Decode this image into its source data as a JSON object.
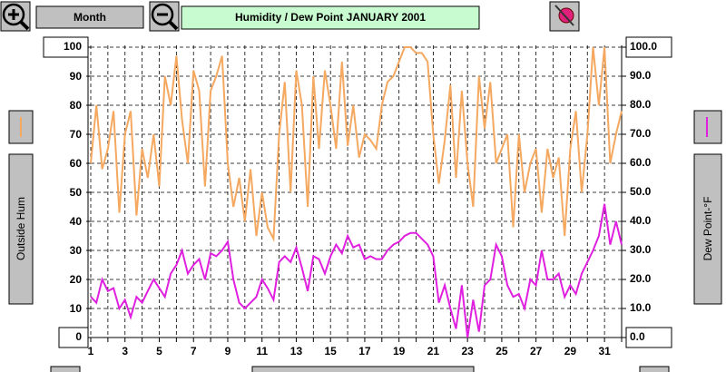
{
  "toolbar": {
    "period": "Month"
  },
  "chart_data": {
    "type": "line",
    "title": "Humidity  /  Dew Point  JANUARY 2001",
    "x": [
      1,
      1.33,
      1.67,
      2,
      2.33,
      2.67,
      3,
      3.33,
      3.67,
      4,
      4.33,
      4.67,
      5,
      5.33,
      5.67,
      6,
      6.33,
      6.67,
      7,
      7.33,
      7.67,
      8,
      8.33,
      8.67,
      9,
      9.33,
      9.67,
      10,
      10.33,
      10.67,
      11,
      11.33,
      11.67,
      12,
      12.33,
      12.67,
      13,
      13.33,
      13.67,
      14,
      14.33,
      14.67,
      15,
      15.33,
      15.67,
      16,
      16.33,
      16.67,
      17,
      17.33,
      17.67,
      18,
      18.33,
      18.67,
      19,
      19.33,
      19.67,
      20,
      20.33,
      20.67,
      21,
      21.33,
      21.67,
      22,
      22.33,
      22.67,
      23,
      23.33,
      23.67,
      24,
      24.33,
      24.67,
      25,
      25.33,
      25.67,
      26,
      26.33,
      26.67,
      27,
      27.33,
      27.67,
      28,
      28.33,
      28.67,
      29,
      29.33,
      29.67,
      30,
      30.33,
      30.67,
      31,
      31.33,
      31.67,
      32
    ],
    "series": [
      {
        "name": "Outside Hum",
        "color": "#f4a860",
        "axis": "y",
        "values": [
          60,
          80,
          58,
          65,
          78,
          43,
          70,
          78,
          42,
          65,
          55,
          70,
          52,
          90,
          80,
          97,
          75,
          60,
          92,
          85,
          52,
          85,
          90,
          97,
          60,
          45,
          55,
          40,
          58,
          35,
          50,
          38,
          34,
          70,
          88,
          50,
          92,
          80,
          45,
          90,
          65,
          92,
          80,
          65,
          95,
          66,
          80,
          62,
          70,
          68,
          65,
          80,
          88,
          90,
          95,
          100,
          100,
          98,
          98,
          95,
          70,
          53,
          68,
          87,
          55,
          85,
          60,
          45,
          90,
          72,
          88,
          60,
          65,
          70,
          38,
          70,
          50,
          60,
          65,
          43,
          65,
          55,
          62,
          35,
          65,
          78,
          50,
          70,
          100,
          80,
          100,
          60,
          70,
          78
        ]
      },
      {
        "name": "Dew Point-°F",
        "color": "#e020e0",
        "axis": "y2",
        "values": [
          14,
          12,
          20,
          16,
          17,
          10,
          13,
          7,
          14,
          12,
          16,
          20,
          17,
          14,
          22,
          25,
          30,
          22,
          25,
          27,
          20,
          29,
          28,
          30,
          33,
          20,
          12,
          10,
          12,
          14,
          20,
          17,
          13,
          26,
          28,
          26,
          31,
          24,
          16,
          28,
          27,
          22,
          28,
          32,
          29,
          35,
          31,
          32,
          27,
          28,
          27,
          27,
          30,
          32,
          33,
          35,
          36,
          36,
          34,
          32,
          28,
          12,
          18,
          10,
          3,
          18,
          0,
          13,
          2,
          18,
          20,
          32,
          28,
          18,
          14,
          15,
          10,
          20,
          18,
          30,
          20,
          20,
          22,
          14,
          18,
          15,
          22,
          26,
          30,
          35,
          46,
          32,
          40,
          32
        ]
      }
    ],
    "xlim": [
      1,
      32
    ],
    "xticks": [
      1,
      3,
      5,
      7,
      9,
      11,
      13,
      15,
      17,
      19,
      21,
      23,
      25,
      27,
      29,
      31
    ],
    "xminorticks": [
      2,
      4,
      6,
      8,
      10,
      12,
      14,
      16,
      18,
      20,
      22,
      24,
      26,
      28,
      30,
      32
    ],
    "ylim": [
      0,
      100
    ],
    "yticks": [
      0,
      10,
      20,
      30,
      40,
      50,
      60,
      70,
      80,
      90,
      100
    ],
    "y2lim": [
      0,
      100
    ],
    "y2ticks": [
      {
        "value": 0,
        "label": "0.0"
      },
      {
        "value": 10,
        "label": "10.0"
      },
      {
        "value": 20,
        "label": "20.0"
      },
      {
        "value": 30,
        "label": "30.0"
      },
      {
        "value": 40,
        "label": "40.0"
      },
      {
        "value": 50,
        "label": "50.0"
      },
      {
        "value": 60,
        "label": "60.0"
      },
      {
        "value": 70,
        "label": "70.0"
      },
      {
        "value": 80,
        "label": "80.0"
      },
      {
        "value": 90,
        "label": "90.0"
      },
      {
        "value": 100,
        "label": "100.0"
      }
    ],
    "grid": true
  }
}
